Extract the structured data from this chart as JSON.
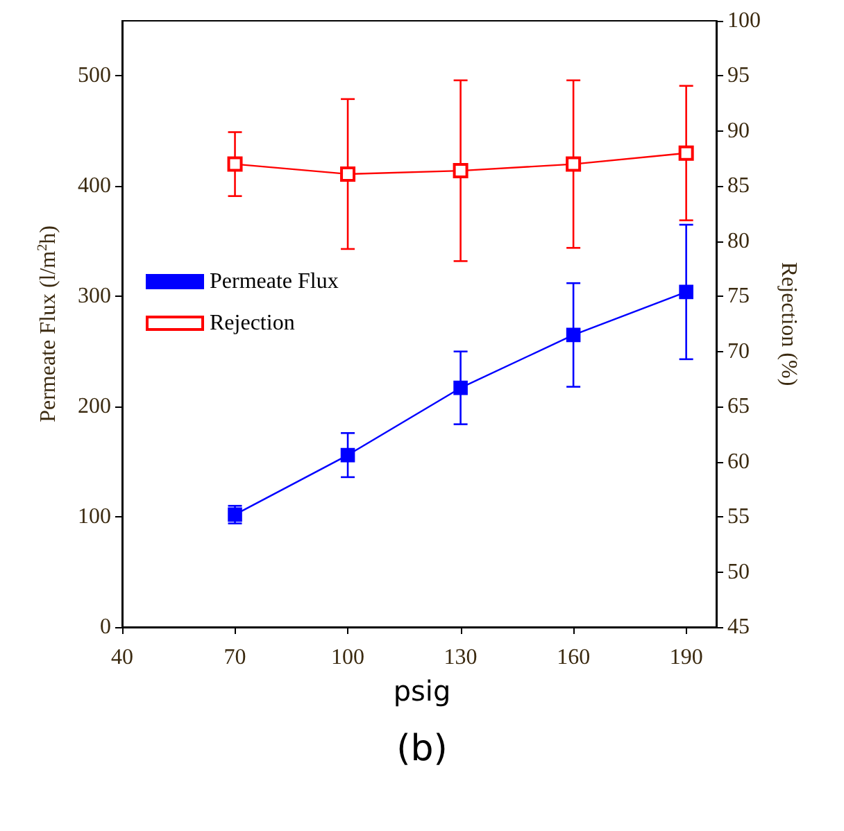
{
  "chart_data": {
    "type": "line",
    "xlabel": "psig",
    "ylabel": "Permeate Flux (l/m$^{2}$h)",
    "y2label": "Rejection (%)",
    "x": [
      70,
      100,
      130,
      160,
      190
    ],
    "series": [
      {
        "name": "Permeate Flux",
        "color": "#0000ff",
        "values": [
          102,
          156,
          217,
          265,
          304
        ],
        "errors": [
          8,
          20,
          33,
          47,
          61
        ]
      },
      {
        "name": "Rejection",
        "color": "#ff0000",
        "axis": "y2",
        "values": [
          87.0,
          86.1,
          86.4,
          87.0,
          88.0
        ],
        "errors": [
          2.9,
          6.8,
          8.2,
          7.6,
          6.1
        ]
      }
    ],
    "xlim": [
      40,
      198
    ],
    "xticks": [
      40,
      70,
      100,
      130,
      160,
      190
    ],
    "ylim": [
      0,
      550
    ],
    "yticks": [
      0,
      100,
      200,
      300,
      400,
      500
    ],
    "y2lim": [
      45,
      100
    ],
    "y2ticks": [
      45,
      50,
      55,
      60,
      65,
      70,
      75,
      80,
      85,
      90,
      95,
      100
    ],
    "legend": "left",
    "marker": "square",
    "line_style": "solid",
    "grid": false,
    "annotations": [
      "(b)"
    ]
  }
}
